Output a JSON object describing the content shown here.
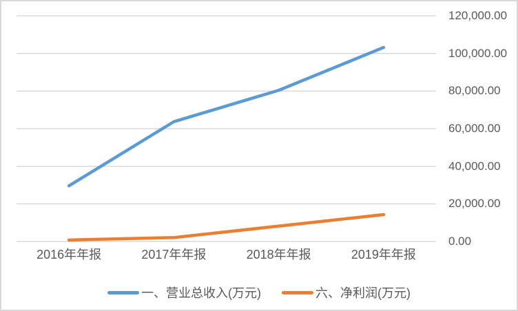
{
  "chart_data": {
    "type": "line",
    "title": "",
    "categories": [
      "2016年年报",
      "2017年年报",
      "2018年年报",
      "2019年年报"
    ],
    "series": [
      {
        "name": "一、营业总收入(万元)",
        "color": "#5B9BD5",
        "values": [
          29600,
          63700,
          80400,
          103200
        ]
      },
      {
        "name": "六、净利润(万元)",
        "color": "#ED7D31",
        "values": [
          800,
          2100,
          8200,
          14300
        ]
      }
    ],
    "xlabel": "",
    "ylabel": "",
    "ylim": [
      0,
      120000
    ],
    "y_tick_step": 20000,
    "y_tick_labels": [
      "0.00",
      "20,000.00",
      "40,000.00",
      "60,000.00",
      "80,000.00",
      "100,000.00",
      "120,000.00"
    ],
    "y_axis_side": "right",
    "grid": "horizontal",
    "legend_position": "bottom",
    "colors": {
      "gridline": "#D9D9D9",
      "border": "#D9D9D9",
      "text": "#595959",
      "background": "#FFFFFF"
    }
  }
}
